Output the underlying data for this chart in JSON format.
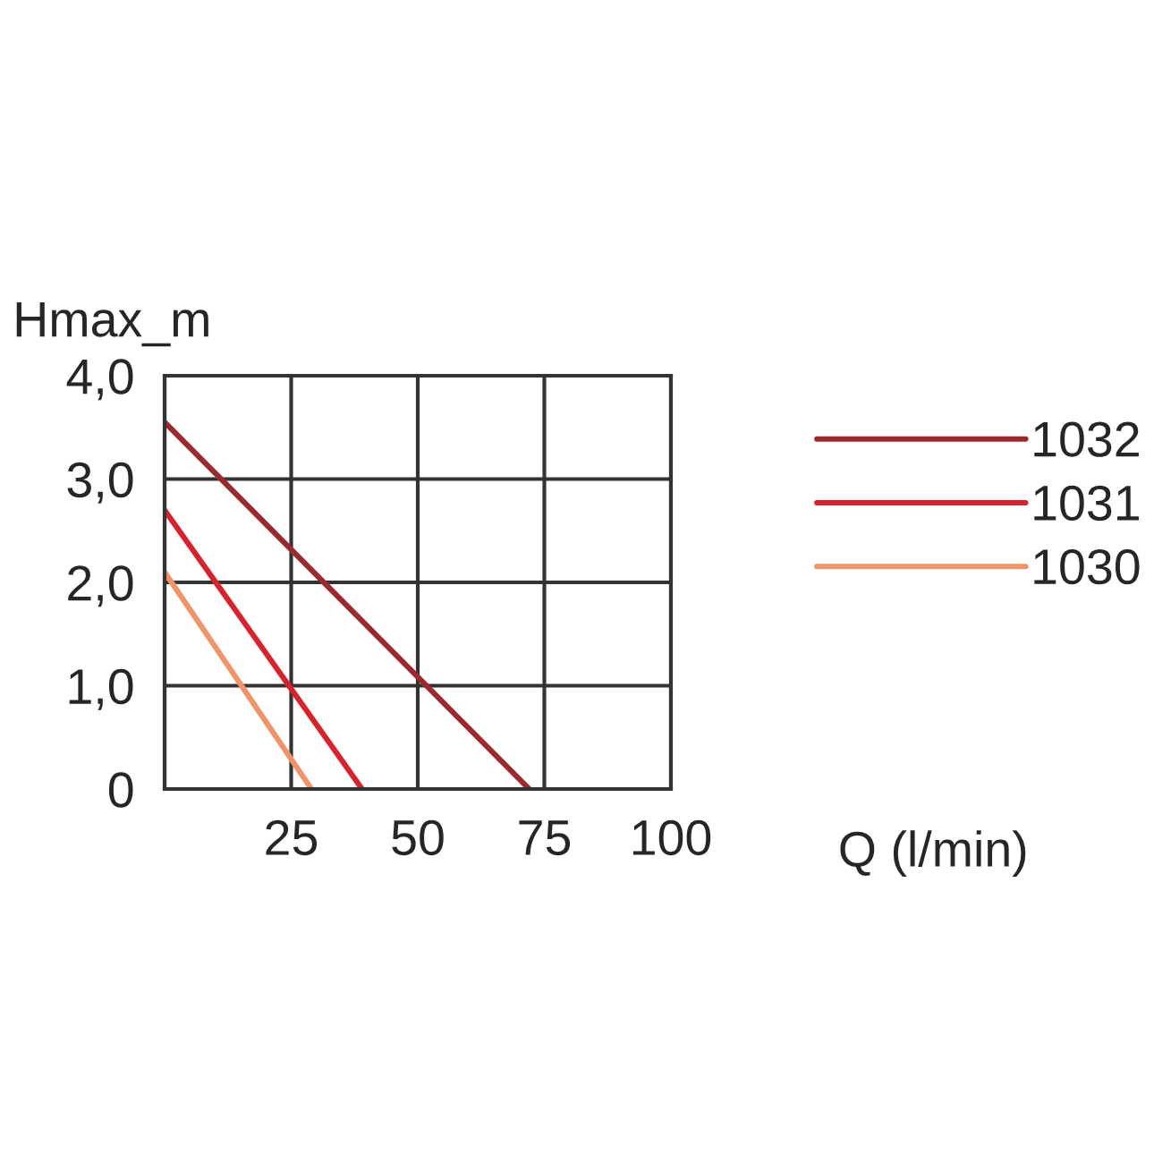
{
  "chart_data": {
    "type": "line",
    "xlabel": "Q (l/min)",
    "ylabel": "Hmax_m",
    "xlim": [
      0,
      100
    ],
    "xticks": [
      {
        "value": 0,
        "label": null
      },
      25,
      50,
      75,
      100
    ],
    "ylim": [
      0,
      4
    ],
    "yticks": [
      {
        "value": 0,
        "label": "0"
      },
      {
        "value": 1,
        "label": "1,0"
      },
      {
        "value": 2,
        "label": "2,0"
      },
      {
        "value": 3,
        "label": "3,0"
      },
      {
        "value": 4,
        "label": "4,0"
      }
    ],
    "grid": true,
    "legend": "right",
    "marker": "none",
    "line_style": "solid",
    "series": [
      {
        "name": "1032",
        "color": "#9b2a2e",
        "x": [
          0,
          72
        ],
        "values": [
          3.55,
          0
        ]
      },
      {
        "name": "1031",
        "color": "#d6232e",
        "x": [
          0,
          39
        ],
        "values": [
          2.7,
          0
        ]
      },
      {
        "name": "1030",
        "color": "#f0946a",
        "x": [
          0,
          29
        ],
        "values": [
          2.1,
          0
        ]
      }
    ]
  }
}
